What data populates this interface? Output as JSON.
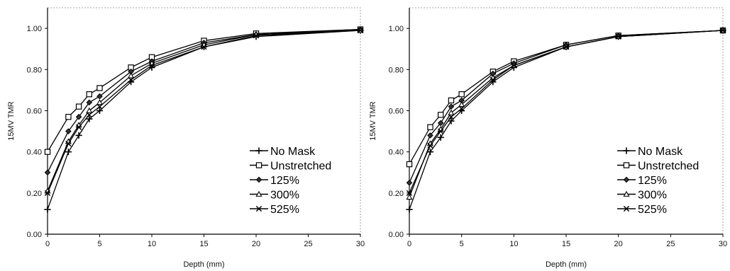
{
  "figure": {
    "panels": [
      {
        "ylabel": "15MV TMR",
        "xlabel": "Depth (mm)",
        "xticks": [
          "0",
          "5",
          "10",
          "15",
          "20",
          "25",
          "30"
        ],
        "yticks": [
          "0.00",
          "0.20",
          "0.40",
          "0.60",
          "0.80",
          "1.00"
        ],
        "legend": [
          "No Mask",
          "Unstretched",
          "125%",
          "300%",
          "525%"
        ]
      },
      {
        "ylabel": "15MV TMR",
        "xlabel": "Depth (mm)",
        "xticks": [
          "0",
          "5",
          "10",
          "15",
          "20",
          "25",
          "30"
        ],
        "yticks": [
          "0.00",
          "0.20",
          "0.40",
          "0.60",
          "0.80",
          "1.00"
        ],
        "legend": [
          "No Mask",
          "Unstretched",
          "125%",
          "300%",
          "525%"
        ]
      }
    ]
  },
  "chart_data": [
    {
      "type": "line",
      "xlabel": "Depth (mm)",
      "ylabel": "15MV TMR",
      "xlim": [
        0,
        30
      ],
      "ylim": [
        0,
        1.1
      ],
      "x": [
        0,
        2,
        3,
        4,
        5,
        8,
        10,
        15,
        20,
        30
      ],
      "grid": false,
      "legend_position": "bottom-right",
      "series": [
        {
          "name": "No Mask",
          "marker": "plus",
          "values": [
            0.12,
            0.4,
            0.48,
            0.56,
            0.6,
            0.74,
            0.81,
            0.91,
            0.96,
            0.99
          ]
        },
        {
          "name": "Unstretched",
          "marker": "square",
          "values": [
            0.4,
            0.57,
            0.62,
            0.68,
            0.71,
            0.81,
            0.86,
            0.94,
            0.975,
            0.995
          ]
        },
        {
          "name": "125%",
          "marker": "diamond",
          "values": [
            0.3,
            0.5,
            0.57,
            0.64,
            0.67,
            0.79,
            0.84,
            0.93,
            0.97,
            0.995
          ]
        },
        {
          "name": "300%",
          "marker": "triangle",
          "values": [
            0.21,
            0.45,
            0.53,
            0.6,
            0.64,
            0.77,
            0.83,
            0.92,
            0.97,
            0.99
          ]
        },
        {
          "name": "525%",
          "marker": "x",
          "values": [
            0.2,
            0.44,
            0.52,
            0.58,
            0.62,
            0.75,
            0.82,
            0.91,
            0.965,
            0.99
          ]
        }
      ]
    },
    {
      "type": "line",
      "xlabel": "Depth (mm)",
      "ylabel": "15MV TMR",
      "xlim": [
        0,
        30
      ],
      "ylim": [
        0,
        1.1
      ],
      "x": [
        0,
        2,
        3,
        4,
        5,
        8,
        10,
        15,
        20,
        30
      ],
      "grid": false,
      "legend_position": "bottom-right",
      "series": [
        {
          "name": "No Mask",
          "marker": "plus",
          "values": [
            0.12,
            0.4,
            0.47,
            0.55,
            0.6,
            0.74,
            0.81,
            0.91,
            0.96,
            0.99
          ]
        },
        {
          "name": "Unstretched",
          "marker": "square",
          "values": [
            0.34,
            0.52,
            0.58,
            0.65,
            0.68,
            0.79,
            0.84,
            0.92,
            0.965,
            0.99
          ]
        },
        {
          "name": "125%",
          "marker": "diamond",
          "values": [
            0.25,
            0.48,
            0.54,
            0.62,
            0.65,
            0.78,
            0.83,
            0.92,
            0.965,
            0.99
          ]
        },
        {
          "name": "300%",
          "marker": "triangle",
          "values": [
            0.18,
            0.44,
            0.51,
            0.59,
            0.63,
            0.76,
            0.82,
            0.91,
            0.96,
            0.99
          ]
        },
        {
          "name": "525%",
          "marker": "x",
          "values": [
            0.2,
            0.43,
            0.5,
            0.57,
            0.61,
            0.75,
            0.82,
            0.91,
            0.96,
            0.99
          ]
        }
      ]
    }
  ]
}
